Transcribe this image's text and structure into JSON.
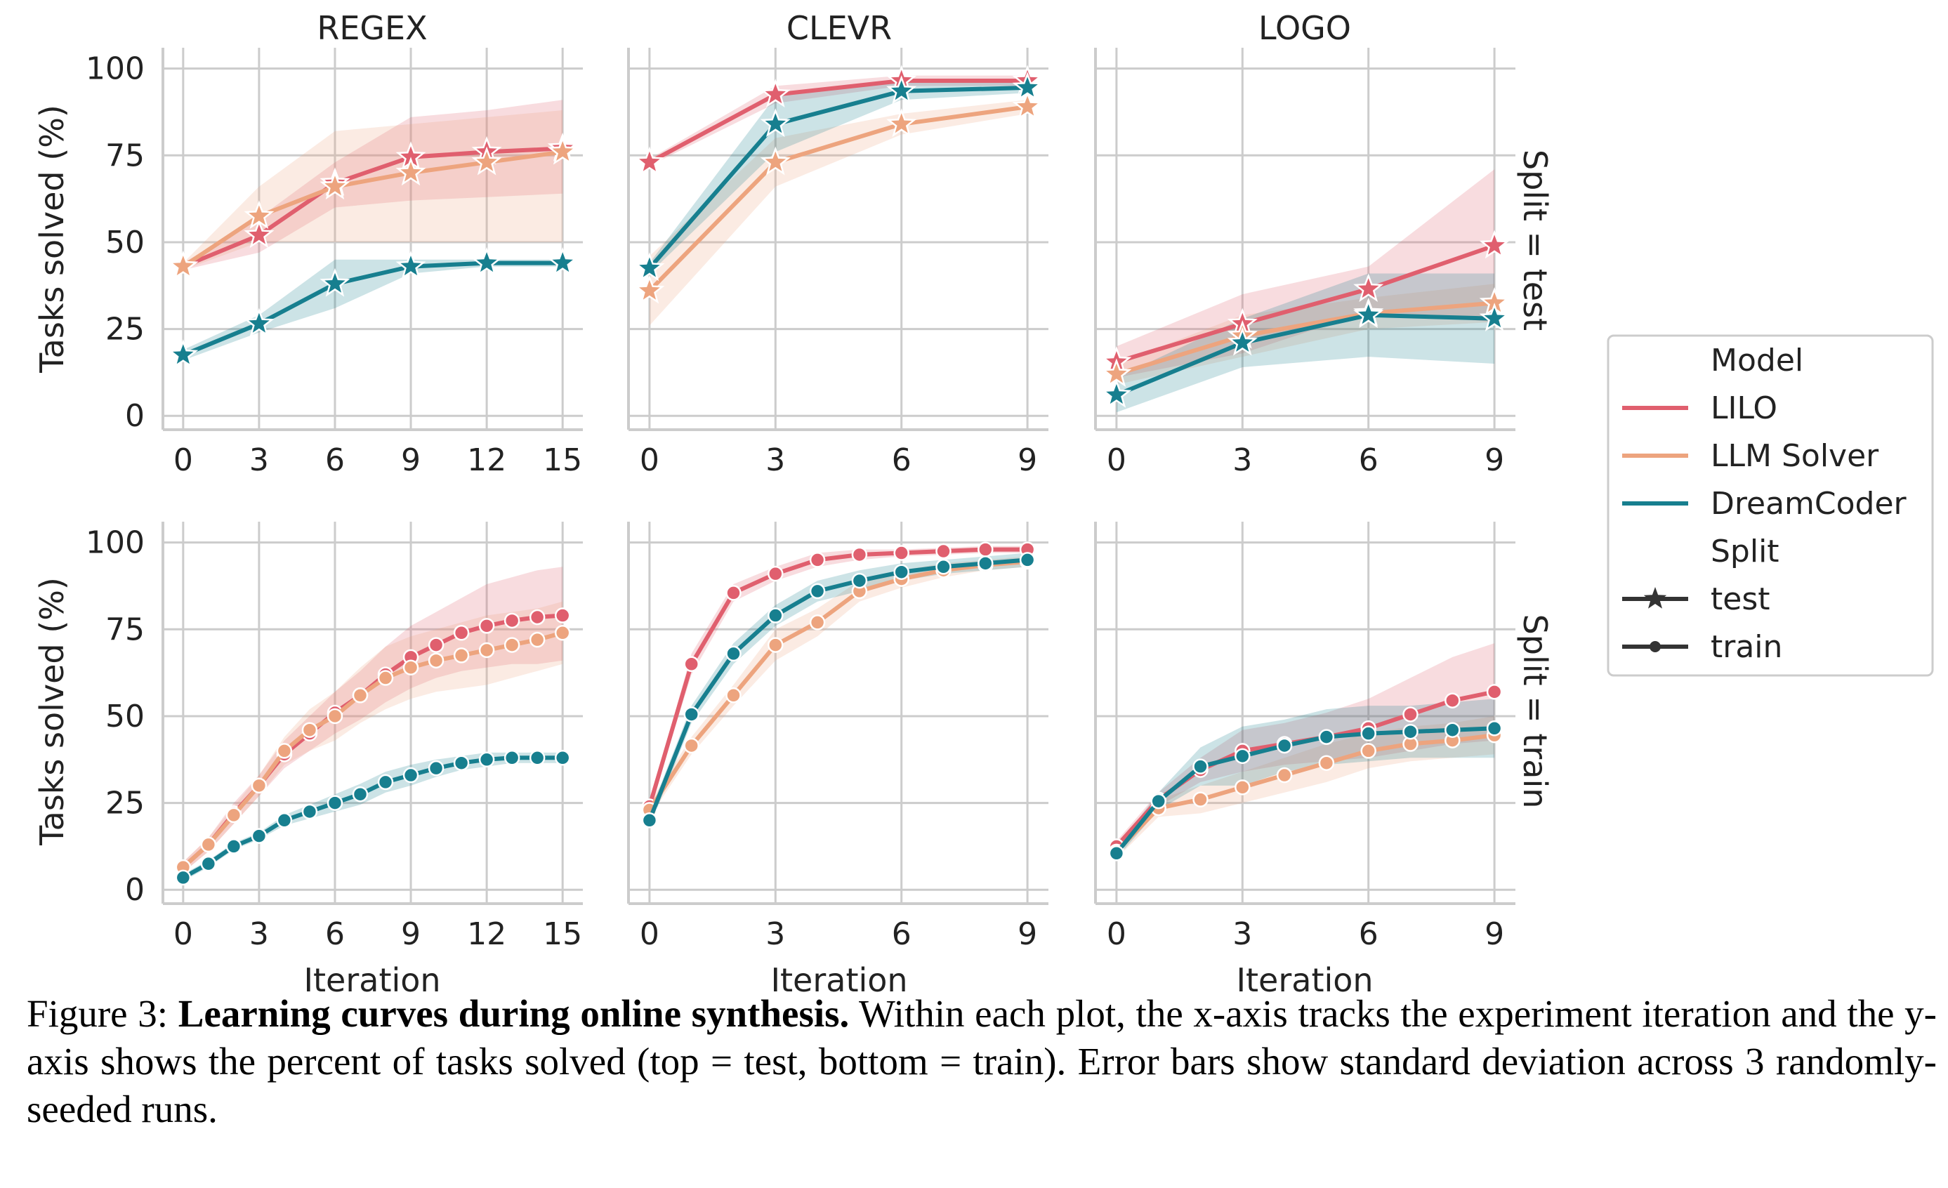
{
  "colors": {
    "LILO": "#e05f6e",
    "LLM Solver": "#eda47e",
    "DreamCoder": "#177f8f",
    "grid": "#cccccc",
    "axis": "#cccccc"
  },
  "labels": {
    "ylabel": "Tasks solved (%)",
    "xlabel": "Iteration",
    "row_titles": [
      "Split = test",
      "Split = train"
    ],
    "col_titles": [
      "REGEX",
      "CLEVR",
      "LOGO"
    ]
  },
  "legend": {
    "model_title": "Model",
    "models": [
      "LILO",
      "LLM Solver",
      "DreamCoder"
    ],
    "split_title": "Split",
    "splits": [
      "test",
      "train"
    ]
  },
  "chart_data": [
    {
      "type": "line",
      "title": "REGEX",
      "split": "test",
      "xticks": [
        0,
        3,
        6,
        9,
        12,
        15
      ],
      "yticks": [
        0,
        25,
        50,
        75,
        100
      ],
      "xlim": [
        -0.8,
        15.8
      ],
      "ylim": [
        -4,
        106
      ],
      "marker": "star",
      "series": [
        {
          "name": "LILO",
          "x": [
            0,
            3,
            6,
            9,
            12,
            15
          ],
          "y": [
            43,
            52,
            67,
            74.5,
            76,
            77
          ],
          "lo": [
            42,
            47,
            60,
            62,
            63,
            64
          ],
          "hi": [
            44,
            57,
            73,
            86,
            88,
            91
          ]
        },
        {
          "name": "LLM Solver",
          "x": [
            0,
            3,
            6,
            9,
            12,
            15
          ],
          "y": [
            43,
            57.5,
            66,
            70,
            73,
            76
          ],
          "lo": [
            42,
            50,
            50,
            50,
            50,
            50
          ],
          "hi": [
            44,
            66,
            82,
            84,
            86,
            88
          ]
        },
        {
          "name": "DreamCoder",
          "x": [
            0,
            3,
            6,
            9,
            12,
            15
          ],
          "y": [
            17.5,
            26.5,
            38,
            43,
            44,
            44
          ],
          "lo": [
            16,
            24,
            31,
            41,
            43,
            43
          ],
          "hi": [
            19,
            29,
            45,
            45,
            45,
            45
          ]
        }
      ]
    },
    {
      "type": "line",
      "title": "CLEVR",
      "split": "test",
      "xticks": [
        0,
        3,
        6,
        9
      ],
      "yticks": [
        0,
        25,
        50,
        75,
        100
      ],
      "xlim": [
        -0.5,
        9.5
      ],
      "ylim": [
        -4,
        106
      ],
      "marker": "star",
      "series": [
        {
          "name": "LILO",
          "x": [
            0,
            3,
            6,
            9
          ],
          "y": [
            73,
            92.5,
            96.5,
            96.5
          ],
          "lo": [
            72,
            90,
            95,
            95
          ],
          "hi": [
            74,
            95,
            98,
            98
          ]
        },
        {
          "name": "LLM Solver",
          "x": [
            0,
            3,
            6,
            9
          ],
          "y": [
            36,
            73,
            84,
            89
          ],
          "lo": [
            26,
            66,
            81,
            87
          ],
          "hi": [
            46,
            80,
            87,
            91
          ]
        },
        {
          "name": "DreamCoder",
          "x": [
            0,
            3,
            6,
            9
          ],
          "y": [
            42.5,
            84,
            93.5,
            94.5
          ],
          "lo": [
            41,
            76,
            91,
            93
          ],
          "hi": [
            44,
            92,
            96,
            96
          ]
        }
      ]
    },
    {
      "type": "line",
      "title": "LOGO",
      "split": "test",
      "xticks": [
        0,
        3,
        6,
        9
      ],
      "yticks": [
        0,
        25,
        50,
        75,
        100
      ],
      "xlim": [
        -0.5,
        9.5
      ],
      "ylim": [
        -4,
        106
      ],
      "marker": "star",
      "series": [
        {
          "name": "LILO",
          "x": [
            0,
            3,
            6,
            9
          ],
          "y": [
            15.5,
            26.5,
            36.5,
            49
          ],
          "lo": [
            11,
            18,
            30,
            27
          ],
          "hi": [
            20,
            35,
            43,
            71
          ]
        },
        {
          "name": "LLM Solver",
          "x": [
            0,
            3,
            6,
            9
          ],
          "y": [
            12,
            23,
            29.5,
            32.5
          ],
          "lo": [
            9,
            17,
            25,
            27
          ],
          "hi": [
            15,
            29,
            34,
            38
          ]
        },
        {
          "name": "DreamCoder",
          "x": [
            0,
            3,
            6,
            9
          ],
          "y": [
            6,
            21,
            29,
            28
          ],
          "lo": [
            1,
            14,
            17,
            15
          ],
          "hi": [
            11,
            28,
            41,
            41
          ]
        }
      ]
    },
    {
      "type": "line",
      "title": "",
      "split": "train",
      "xticks": [
        0,
        3,
        6,
        9,
        12,
        15
      ],
      "yticks": [
        0,
        25,
        50,
        75,
        100
      ],
      "xlim": [
        -0.8,
        15.8
      ],
      "ylim": [
        -4,
        106
      ],
      "marker": "circle",
      "series": [
        {
          "name": "LILO",
          "x": [
            0,
            1,
            2,
            3,
            4,
            5,
            6,
            7,
            8,
            9,
            10,
            11,
            12,
            13,
            14,
            15
          ],
          "y": [
            6.5,
            13,
            22,
            30,
            39,
            45,
            51,
            56,
            62,
            67,
            70.5,
            74,
            76,
            77.5,
            78.5,
            79
          ],
          "lo": [
            5,
            11,
            19,
            27,
            35,
            40,
            45,
            49,
            54,
            58,
            61,
            63,
            64,
            65,
            65,
            66
          ],
          "hi": [
            8,
            15,
            25,
            33,
            43,
            50,
            57,
            63,
            70,
            76,
            80,
            84,
            88,
            90,
            92,
            93
          ]
        },
        {
          "name": "LLM Solver",
          "x": [
            0,
            1,
            2,
            3,
            4,
            5,
            6,
            7,
            8,
            9,
            10,
            11,
            12,
            13,
            14,
            15
          ],
          "y": [
            6.5,
            13,
            21.5,
            30,
            40,
            46,
            50,
            56,
            61,
            64,
            66,
            67.5,
            69,
            70.5,
            72,
            74
          ],
          "lo": [
            5,
            11,
            19,
            27,
            36,
            40,
            43,
            48,
            52,
            55,
            57,
            58,
            59,
            61,
            63,
            65
          ],
          "hi": [
            8,
            15,
            24,
            33,
            44,
            52,
            57,
            64,
            70,
            73,
            75,
            77,
            79,
            80,
            81,
            83
          ]
        },
        {
          "name": "DreamCoder",
          "x": [
            0,
            1,
            2,
            3,
            4,
            5,
            6,
            7,
            8,
            9,
            10,
            11,
            12,
            13,
            14,
            15
          ],
          "y": [
            3.5,
            7.5,
            12.5,
            15.5,
            20,
            22.5,
            25,
            27.5,
            31,
            33,
            35,
            36.5,
            37.5,
            38,
            38,
            38
          ],
          "lo": [
            2.5,
            6.5,
            11.5,
            14.5,
            18.5,
            20.5,
            22.5,
            24.5,
            28,
            30,
            32.5,
            34.5,
            35.5,
            36.5,
            36.5,
            36.5
          ],
          "hi": [
            4.5,
            8.5,
            13.5,
            16.5,
            21.5,
            24.5,
            27.5,
            30.5,
            34,
            36,
            37.5,
            38.5,
            39.5,
            39.5,
            39.5,
            39.5
          ]
        }
      ]
    },
    {
      "type": "line",
      "title": "",
      "split": "train",
      "xticks": [
        0,
        3,
        6,
        9
      ],
      "yticks": [
        0,
        25,
        50,
        75,
        100
      ],
      "xlim": [
        -0.5,
        9.5
      ],
      "ylim": [
        -4,
        106
      ],
      "marker": "circle",
      "series": [
        {
          "name": "LILO",
          "x": [
            0,
            1,
            2,
            3,
            4,
            5,
            6,
            7,
            8,
            9
          ],
          "y": [
            24,
            65,
            85.5,
            91,
            95,
            96.5,
            97,
            97.5,
            98,
            98
          ],
          "lo": [
            23,
            62,
            83,
            89,
            93,
            95,
            96,
            96.5,
            97,
            97
          ],
          "hi": [
            25,
            68,
            88,
            93,
            97,
            98,
            98,
            98.5,
            99,
            99
          ]
        },
        {
          "name": "LLM Solver",
          "x": [
            0,
            1,
            2,
            3,
            4,
            5,
            6,
            7,
            8,
            9
          ],
          "y": [
            23,
            41.5,
            56,
            70.5,
            77,
            86,
            89.5,
            92,
            93.5,
            94.5
          ],
          "lo": [
            21,
            39,
            53,
            66,
            73,
            83,
            87,
            90,
            92,
            93
          ],
          "hi": [
            25,
            44,
            59,
            75,
            81,
            89,
            92,
            94,
            95,
            96
          ]
        },
        {
          "name": "DreamCoder",
          "x": [
            0,
            1,
            2,
            3,
            4,
            5,
            6,
            7,
            8,
            9
          ],
          "y": [
            20,
            50.5,
            68,
            79,
            86,
            89,
            91.5,
            93,
            94,
            95
          ],
          "lo": [
            18,
            48,
            65,
            76,
            83,
            86,
            89,
            91,
            92,
            93
          ],
          "hi": [
            22,
            53,
            71,
            82,
            89,
            92,
            94,
            95,
            96,
            97
          ]
        }
      ]
    },
    {
      "type": "line",
      "title": "",
      "split": "train",
      "xticks": [
        0,
        3,
        6,
        9
      ],
      "yticks": [
        0,
        25,
        50,
        75,
        100
      ],
      "xlim": [
        -0.5,
        9.5
      ],
      "ylim": [
        -4,
        106
      ],
      "marker": "circle",
      "series": [
        {
          "name": "LILO",
          "x": [
            0,
            1,
            2,
            3,
            4,
            5,
            6,
            7,
            8,
            9
          ],
          "y": [
            12.5,
            26,
            34.5,
            40,
            42,
            44,
            46.5,
            50.5,
            54.5,
            57
          ],
          "lo": [
            11,
            24,
            31,
            34,
            36,
            37,
            38,
            40,
            42,
            43
          ],
          "hi": [
            14,
            28,
            38,
            46,
            48,
            51,
            55,
            61,
            67,
            71
          ]
        },
        {
          "name": "LLM Solver",
          "x": [
            0,
            1,
            2,
            3,
            4,
            5,
            6,
            7,
            8,
            9
          ],
          "y": [
            11,
            23.5,
            26,
            29.5,
            33,
            36.5,
            40,
            42,
            43,
            44.5
          ],
          "lo": [
            9,
            21,
            22,
            25,
            28,
            31,
            35,
            37,
            38,
            39
          ],
          "hi": [
            13,
            26,
            30,
            34,
            38,
            42,
            45,
            47,
            48,
            50
          ]
        },
        {
          "name": "DreamCoder",
          "x": [
            0,
            1,
            2,
            3,
            4,
            5,
            6,
            7,
            8,
            9
          ],
          "y": [
            10.5,
            25.5,
            35.5,
            38.5,
            41.5,
            44,
            45,
            45.5,
            46,
            46.5
          ],
          "lo": [
            9,
            23,
            30,
            30,
            34,
            36,
            37,
            38,
            38,
            38
          ],
          "hi": [
            12,
            28,
            41,
            47,
            49,
            52,
            53,
            53,
            54,
            55
          ]
        }
      ]
    }
  ],
  "caption": {
    "label": "Figure 3:",
    "bold": "Learning curves during online synthesis.",
    "text": "Within each plot, the x-axis tracks the experiment iteration and the y-axis shows the percent of tasks solved (top = test, bottom = train). Error bars show standard deviation across 3 randomly-seeded runs."
  }
}
